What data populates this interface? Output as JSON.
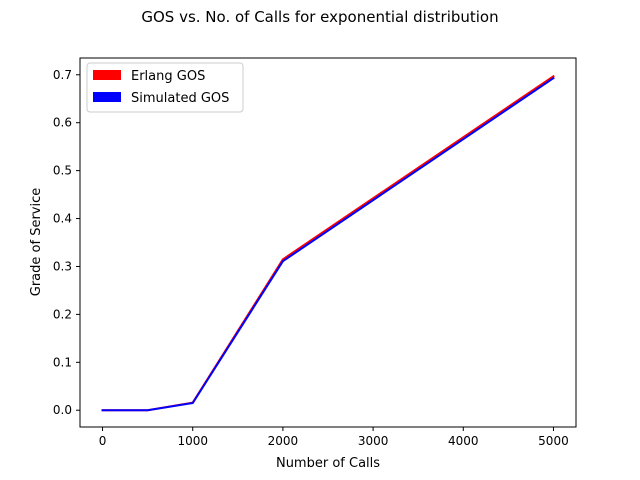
{
  "chart_data": {
    "type": "line",
    "title": "GOS vs. No. of Calls for exponential distribution",
    "xlabel": "Number of Calls",
    "ylabel": "Grade of Service",
    "xlim": [
      -250,
      5250
    ],
    "ylim": [
      -0.035,
      0.735
    ],
    "xticks": [
      0,
      1000,
      2000,
      3000,
      4000,
      5000
    ],
    "xtick_labels": [
      "0",
      "1000",
      "2000",
      "3000",
      "4000",
      "5000"
    ],
    "yticks": [
      0.0,
      0.1,
      0.2,
      0.3,
      0.4,
      0.5,
      0.6,
      0.7
    ],
    "ytick_labels": [
      "0.0",
      "0.1",
      "0.2",
      "0.3",
      "0.4",
      "0.5",
      "0.6",
      "0.7"
    ],
    "grid": false,
    "legend_position": "top-left",
    "x": [
      0,
      500,
      1000,
      2000,
      5000
    ],
    "series": [
      {
        "name": "Erlang GOS",
        "color": "#ff0000",
        "values": [
          0.0,
          0.0,
          0.016,
          0.315,
          0.697
        ]
      },
      {
        "name": "Simulated GOS",
        "color": "#0000ff",
        "values": [
          0.0,
          0.0,
          0.015,
          0.311,
          0.693
        ]
      }
    ]
  }
}
